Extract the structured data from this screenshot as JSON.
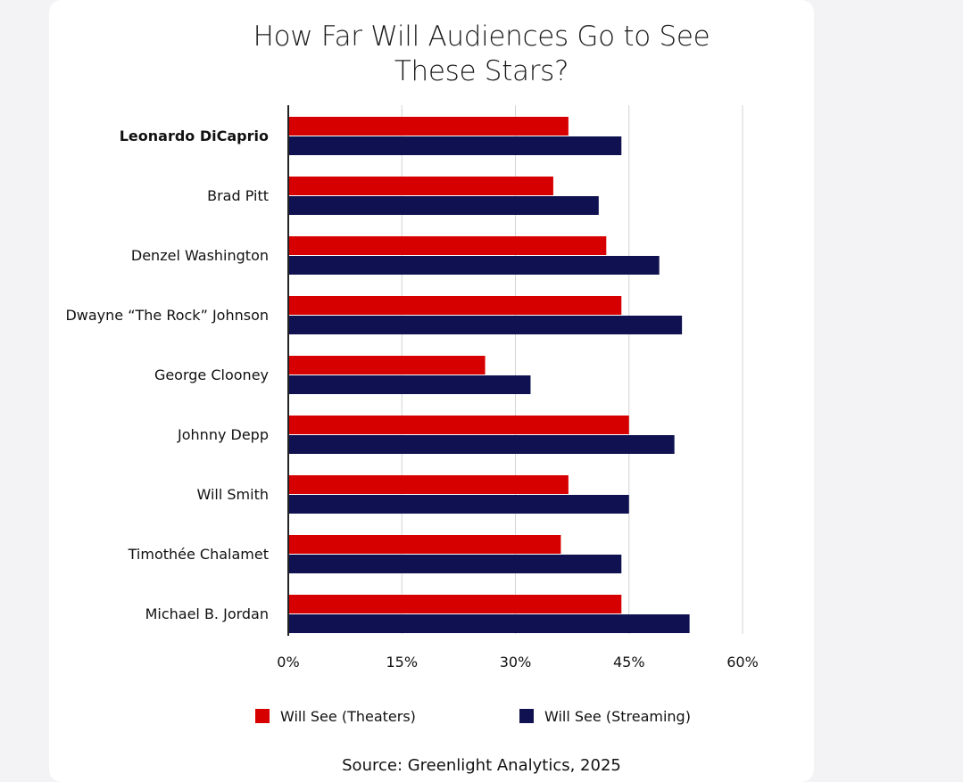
{
  "title_lines": [
    "How Far Will Audiences Go to See",
    "These Stars?"
  ],
  "source": "Source: Greenlight Analytics, 2025",
  "colors": {
    "theaters": "#d60000",
    "streaming": "#0f1150",
    "grid": "#d4d4d4",
    "axis": "#222222"
  },
  "chart_data": {
    "type": "bar",
    "orientation": "horizontal",
    "title": "How Far Will Audiences Go to See These Stars?",
    "categories": [
      "Leonardo DiCaprio",
      "Brad Pitt",
      "Denzel Washington",
      "Dwayne “The Rock” Johnson",
      "George Clooney",
      "Johnny Depp",
      "Will Smith",
      "Timothée Chalamet",
      "Michael B. Jordan"
    ],
    "series": [
      {
        "name": "Will See (Theaters)",
        "values": [
          37,
          35,
          42,
          44,
          26,
          45,
          37,
          36,
          44
        ]
      },
      {
        "name": "Will See (Streaming)",
        "values": [
          44,
          41,
          49,
          52,
          32,
          51,
          45,
          44,
          53
        ]
      }
    ],
    "xlim": [
      0,
      60
    ],
    "x_ticks": [
      "0%",
      "15%",
      "30%",
      "45%",
      "60%"
    ],
    "x_tick_values": [
      0,
      15,
      30,
      45,
      60
    ],
    "grid": true,
    "legend_position": "bottom",
    "xlabel": "",
    "ylabel": ""
  }
}
